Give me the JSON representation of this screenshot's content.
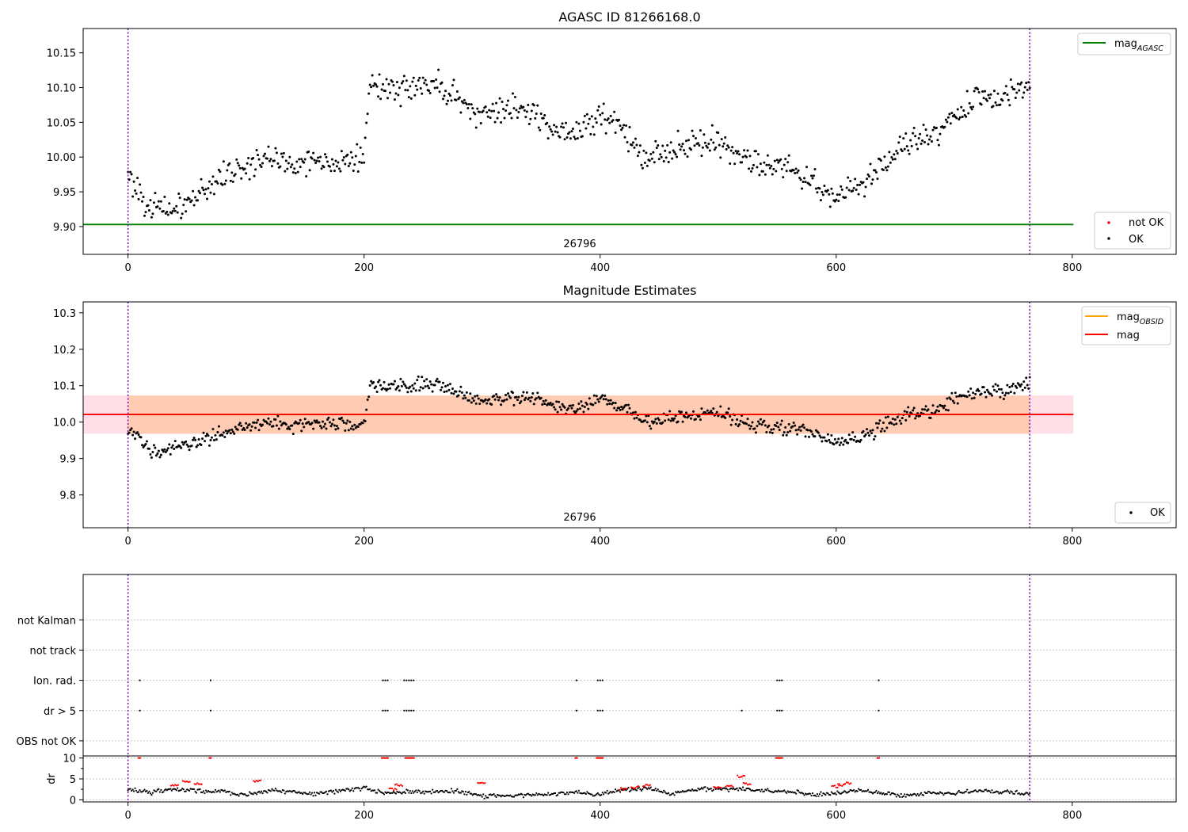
{
  "chart_data": [
    {
      "type": "scatter",
      "title": "AGASC ID 81266168.0",
      "xlim": [
        -38,
        888
      ],
      "ylim": [
        9.86,
        10.185
      ],
      "xticks": [
        0,
        200,
        400,
        600,
        800
      ],
      "yticks": [
        9.9,
        9.95,
        10.0,
        10.05,
        10.1,
        10.15
      ],
      "grid": false,
      "annotation": "26796",
      "vlines": [
        0,
        764
      ],
      "hline": {
        "name": "mag_AGASC",
        "y": 9.903,
        "x": [
          -38,
          801
        ],
        "color": "#008000"
      },
      "legends": [
        {
          "position": "top-right",
          "entries": [
            {
              "label": "mag",
              "sub": "AGASC",
              "kind": "line",
              "color": "#008000"
            }
          ]
        },
        {
          "position": "bottom-right",
          "entries": [
            {
              "label": "not OK",
              "kind": "dot",
              "color": "#ff0000"
            },
            {
              "label": "OK",
              "kind": "dot",
              "color": "#000000"
            }
          ]
        }
      ],
      "series": [
        {
          "name": "OK",
          "color": "#000000",
          "x": [
            0,
            20,
            40,
            60,
            80,
            100,
            120,
            140,
            160,
            180,
            200,
            205,
            220,
            240,
            260,
            280,
            300,
            320,
            340,
            360,
            380,
            400,
            420,
            440,
            460,
            480,
            500,
            520,
            540,
            560,
            580,
            600,
            620,
            640,
            660,
            680,
            700,
            720,
            740,
            764
          ],
          "y": [
            9.975,
            9.925,
            9.925,
            9.945,
            9.975,
            9.985,
            10.0,
            9.99,
            9.995,
            9.995,
            9.995,
            10.11,
            10.095,
            10.1,
            10.11,
            10.08,
            10.06,
            10.07,
            10.065,
            10.045,
            10.035,
            10.06,
            10.04,
            10.0,
            10.01,
            10.02,
            10.025,
            10.0,
            9.99,
            9.985,
            9.965,
            9.945,
            9.955,
            9.99,
            10.02,
            10.03,
            10.06,
            10.09,
            10.08,
            10.11
          ]
        },
        {
          "name": "not OK",
          "color": "#ff0000",
          "x": [],
          "y": []
        }
      ]
    },
    {
      "type": "scatter",
      "title": "Magnitude Estimates",
      "xlim": [
        -38,
        888
      ],
      "ylim": [
        9.71,
        10.33
      ],
      "xticks": [
        0,
        200,
        400,
        600,
        800
      ],
      "yticks": [
        9.8,
        9.9,
        10.0,
        10.1,
        10.2,
        10.3
      ],
      "grid": false,
      "annotation": "26796",
      "vlines": [
        0,
        764
      ],
      "bands": [
        {
          "y": [
            9.968,
            10.073
          ],
          "x": [
            -38,
            801
          ],
          "color": "#ff6b8a",
          "opacity": 0.22
        },
        {
          "y": [
            9.968,
            10.073
          ],
          "x": [
            0,
            764
          ],
          "color": "#ffa040",
          "opacity": 0.3
        }
      ],
      "lines": [
        {
          "name": "mag_OBSID",
          "color": "#ffa500",
          "x": [
            0,
            764
          ],
          "y": [
            10.021,
            10.021
          ]
        },
        {
          "name": "mag",
          "color": "#ff0000",
          "x": [
            -38,
            801
          ],
          "y": [
            10.021,
            10.021
          ]
        }
      ],
      "legends": [
        {
          "position": "top-right",
          "entries": [
            {
              "label": "mag",
              "sub": "OBSID",
              "kind": "line",
              "color": "#ffa500"
            },
            {
              "label": "mag",
              "kind": "line",
              "color": "#ff0000"
            }
          ]
        },
        {
          "position": "bottom-right",
          "entries": [
            {
              "label": "OK",
              "kind": "dot",
              "color": "#000000"
            }
          ]
        }
      ],
      "series": [
        {
          "name": "OK",
          "color": "#000000",
          "x": [
            0,
            20,
            40,
            60,
            80,
            100,
            120,
            140,
            160,
            180,
            200,
            205,
            220,
            240,
            260,
            280,
            300,
            320,
            340,
            360,
            380,
            400,
            420,
            440,
            460,
            480,
            500,
            520,
            540,
            560,
            580,
            600,
            620,
            640,
            660,
            680,
            700,
            720,
            740,
            764
          ],
          "y": [
            9.975,
            9.925,
            9.925,
            9.945,
            9.975,
            9.985,
            10.0,
            9.99,
            9.995,
            9.995,
            9.995,
            10.11,
            10.095,
            10.1,
            10.11,
            10.08,
            10.06,
            10.07,
            10.065,
            10.045,
            10.035,
            10.06,
            10.04,
            10.0,
            10.01,
            10.02,
            10.025,
            10.0,
            9.99,
            9.985,
            9.965,
            9.945,
            9.955,
            9.99,
            10.02,
            10.03,
            10.06,
            10.09,
            10.08,
            10.11
          ]
        }
      ]
    },
    {
      "type": "scatter",
      "title": "",
      "xlim": [
        -38,
        888
      ],
      "ylim": [
        -0.5,
        5.5
      ],
      "categories": [
        "not Kalman",
        "not track",
        "Ion. rad.",
        "dr > 5",
        "OBS not OK"
      ],
      "grid": true,
      "vlines": [
        0,
        764
      ],
      "series": [
        {
          "name": "Ion. rad.",
          "color": "#000000",
          "x": [
            10,
            70,
            216,
            218,
            220,
            234,
            236,
            238,
            240,
            242,
            380,
            398,
            400,
            402,
            550,
            552,
            554,
            636
          ]
        },
        {
          "name": "dr > 5",
          "color": "#000000",
          "x": [
            10,
            70,
            216,
            218,
            220,
            234,
            236,
            238,
            240,
            242,
            380,
            398,
            400,
            402,
            520,
            550,
            552,
            554,
            636
          ]
        }
      ]
    },
    {
      "type": "scatter",
      "title": "",
      "xlim": [
        -38,
        888
      ],
      "ylim": [
        -0.5,
        10.5
      ],
      "xticks": [
        0,
        200,
        400,
        600,
        800
      ],
      "yticks": [
        0,
        5,
        10
      ],
      "ylabel": "dr",
      "grid": true,
      "vlines": [
        0,
        764
      ],
      "series": [
        {
          "name": "OK",
          "color": "#000000",
          "x": [
            0,
            20,
            40,
            60,
            80,
            100,
            120,
            140,
            160,
            180,
            200,
            220,
            240,
            260,
            280,
            300,
            320,
            340,
            360,
            380,
            400,
            420,
            440,
            460,
            480,
            500,
            520,
            540,
            560,
            580,
            600,
            620,
            640,
            660,
            680,
            700,
            720,
            740,
            764
          ],
          "y": [
            2.5,
            1.8,
            2.6,
            2.2,
            1.9,
            1.2,
            2.4,
            1.8,
            1.5,
            2.2,
            2.8,
            1.6,
            2.0,
            1.9,
            2.1,
            1.0,
            0.9,
            1.2,
            1.4,
            1.8,
            1.2,
            2.4,
            2.9,
            1.3,
            2.6,
            2.7,
            2.6,
            2.1,
            2.0,
            1.2,
            1.6,
            2.3,
            1.5,
            1.0,
            1.6,
            1.5,
            2.3,
            1.9,
            1.5
          ]
        },
        {
          "name": "not OK",
          "color": "#ff0000",
          "x": [
            10,
            40,
            50,
            60,
            70,
            110,
            216,
            218,
            220,
            225,
            230,
            236,
            238,
            240,
            242,
            300,
            380,
            398,
            400,
            402,
            420,
            430,
            440,
            500,
            510,
            520,
            525,
            550,
            552,
            554,
            600,
            605,
            610,
            636
          ],
          "y": [
            10,
            3.5,
            4.5,
            3.8,
            10,
            4.4,
            10,
            10,
            10,
            2.5,
            3.5,
            10,
            10,
            10,
            10,
            4.2,
            10,
            10,
            10,
            10,
            2.6,
            3.0,
            3.5,
            3.1,
            3.2,
            5.6,
            3.8,
            10,
            10,
            10,
            3.2,
            3.6,
            3.9,
            10
          ]
        }
      ]
    }
  ]
}
